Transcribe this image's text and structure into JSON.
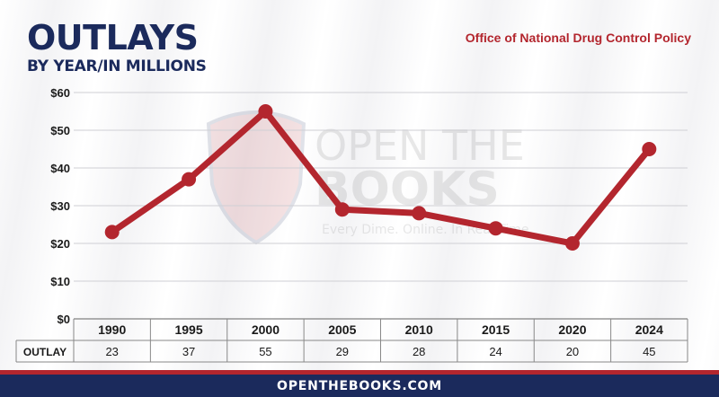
{
  "header": {
    "title": "OUTLAYS",
    "subtitle": "BY YEAR/IN MILLIONS",
    "source": "Office of National Drug Control Policy"
  },
  "watermark": {
    "line1": "OPEN THE",
    "line2": "BOOKS",
    "tagline": "Every Dime. Online. In Real Time."
  },
  "footer": {
    "text": "OPENTHEBOOKS.COM"
  },
  "colors": {
    "navy": "#1b2a5c",
    "red": "#b3262e"
  },
  "chart_data": {
    "type": "line",
    "title": "OUTLAYS",
    "subtitle": "BY YEAR/IN MILLIONS",
    "categories": [
      "1990",
      "1995",
      "2000",
      "2005",
      "2010",
      "2015",
      "2020",
      "2024"
    ],
    "series": [
      {
        "name": "OUTLAY",
        "values": [
          23,
          37,
          55,
          29,
          28,
          24,
          20,
          45
        ]
      }
    ],
    "y_ticks": [
      "$0",
      "$10",
      "$20",
      "$30",
      "$40",
      "$50",
      "$60"
    ],
    "ylim": [
      0,
      60
    ],
    "grid": true,
    "table_row_label": "OUTLAY",
    "line_color": "#b3262e"
  }
}
